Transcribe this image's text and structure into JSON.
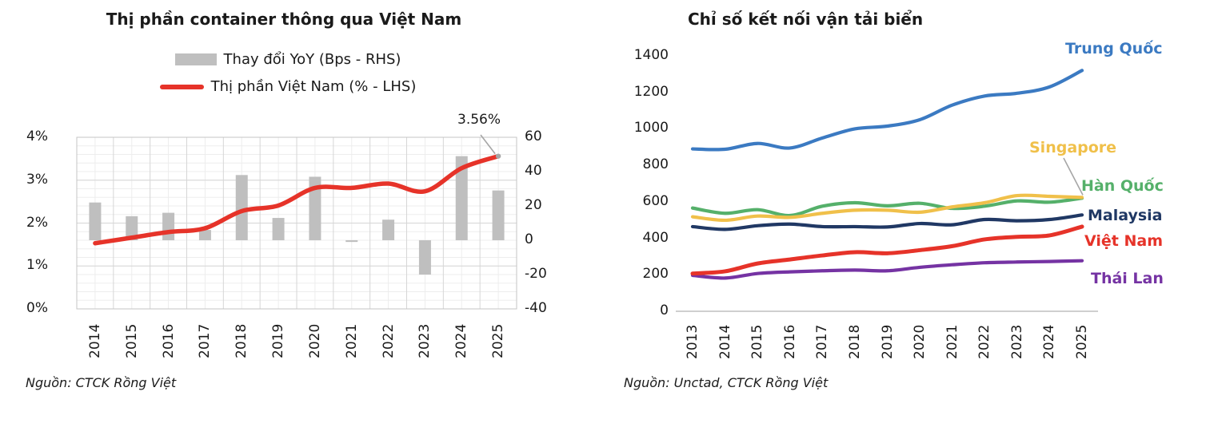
{
  "chart_data": [
    {
      "type": "bar",
      "title": "Thị phần container thông qua Việt Nam",
      "source": "Nguồn: CTCK Rồng Việt",
      "categories": [
        "2014",
        "2015",
        "2016",
        "2017",
        "2018",
        "2019",
        "2020",
        "2021",
        "2022",
        "2023",
        "2024",
        "2025"
      ],
      "series": [
        {
          "name": "Thay đổi YoY (Bps - RHS)",
          "type": "bar",
          "axis": "right",
          "color": "#bfbfbf",
          "values": [
            22,
            14,
            16,
            6,
            38,
            13,
            37,
            -1,
            12,
            -20,
            49,
            29
          ]
        },
        {
          "name": "Thị phần Việt Nam (% - LHS)",
          "type": "line",
          "axis": "left",
          "color": "#e63329",
          "values": [
            1.53,
            1.66,
            1.79,
            1.88,
            2.28,
            2.41,
            2.82,
            2.82,
            2.92,
            2.74,
            3.28,
            3.56
          ]
        }
      ],
      "left_axis": {
        "ticks": [
          "4%",
          "3%",
          "2%",
          "1%",
          "0%"
        ],
        "min": 0,
        "max": 4
      },
      "right_axis": {
        "ticks": [
          "60",
          "40",
          "20",
          "0",
          "-20",
          "-40"
        ],
        "min": -40,
        "max": 60
      },
      "annotation": {
        "text": "3.56%"
      },
      "grid": "on",
      "legend_position": "top"
    },
    {
      "type": "line",
      "title": "Chỉ số kết nối vận tải biển",
      "source": "Nguồn: Unctad, CTCK Rồng Việt",
      "categories": [
        "2013",
        "2014",
        "2015",
        "2016",
        "2017",
        "2018",
        "2019",
        "2020",
        "2021",
        "2022",
        "2023",
        "2024",
        "2025"
      ],
      "y_axis": {
        "ticks": [
          "1400",
          "1200",
          "1000",
          "800",
          "600",
          "400",
          "200",
          "0"
        ],
        "min": 0,
        "max": 1400
      },
      "grid": "off",
      "legend_position": "right-labels",
      "series": [
        {
          "name": "Trung Quốc",
          "color": "#3b7ac2",
          "values": [
            890,
            888,
            920,
            895,
            950,
            1000,
            1015,
            1050,
            1130,
            1180,
            1195,
            1230,
            1320
          ]
        },
        {
          "name": "Singapore",
          "color": "#f0c04a",
          "values": [
            518,
            499,
            522,
            515,
            537,
            554,
            554,
            543,
            572,
            595,
            634,
            630,
            624
          ]
        },
        {
          "name": "Hàn Quốc",
          "color": "#55b06a",
          "values": [
            566,
            537,
            557,
            525,
            576,
            595,
            578,
            592,
            564,
            576,
            605,
            598,
            620
          ]
        },
        {
          "name": "Malaysia",
          "color": "#203864",
          "values": [
            464,
            449,
            469,
            478,
            464,
            464,
            462,
            481,
            474,
            503,
            496,
            503,
            528
          ]
        },
        {
          "name": "Việt Nam",
          "color": "#e63329",
          "values": [
            207,
            219,
            262,
            284,
            306,
            324,
            318,
            335,
            357,
            394,
            408,
            416,
            464
          ]
        },
        {
          "name": "Thái Lan",
          "color": "#7533a3",
          "values": [
            197,
            182,
            207,
            216,
            222,
            226,
            222,
            241,
            255,
            266,
            270,
            273,
            277
          ]
        }
      ]
    }
  ]
}
